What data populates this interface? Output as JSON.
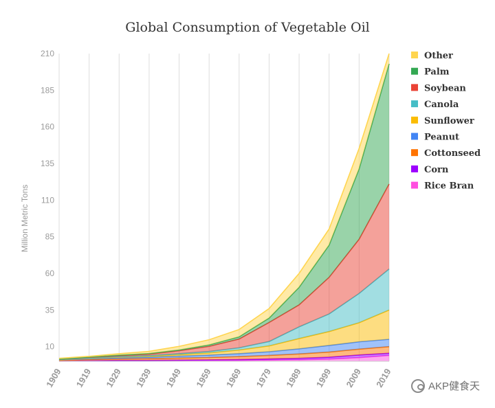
{
  "chart_data": {
    "type": "area",
    "stacked": true,
    "title": "Global Consumption of Vegetable Oil",
    "xlabel": "",
    "ylabel": "Million Metric Tons",
    "x": [
      "1909",
      "1919",
      "1929",
      "1939",
      "1949",
      "1959",
      "1969",
      "1979",
      "1989",
      "1999",
      "2009",
      "2019"
    ],
    "y_ticks": [
      10,
      35,
      60,
      85,
      110,
      135,
      160,
      185,
      210
    ],
    "ylim": [
      0,
      210
    ],
    "grid": "vertical",
    "legend_position": "right",
    "series": [
      {
        "name": "Rice Bran",
        "color": "#ff4fe0",
        "values": [
          0.1,
          0.2,
          0.3,
          0.3,
          0.4,
          0.5,
          0.6,
          0.8,
          1.0,
          1.5,
          2.5,
          4.0
        ]
      },
      {
        "name": "Corn",
        "color": "#9d00ff",
        "values": [
          0.1,
          0.2,
          0.3,
          0.3,
          0.4,
          0.5,
          0.6,
          0.8,
          1.0,
          1.3,
          1.8,
          1.5
        ]
      },
      {
        "name": "Cottonseed",
        "color": "#ff7300",
        "values": [
          0.5,
          0.8,
          1.0,
          1.2,
          1.4,
          1.6,
          2.0,
          2.4,
          3.0,
          3.5,
          4.0,
          4.5
        ]
      },
      {
        "name": "Peanut",
        "color": "#4285f4",
        "values": [
          0.3,
          0.6,
          0.8,
          1.0,
          1.3,
          1.6,
          2.0,
          2.5,
          3.5,
          4.5,
          5.0,
          5.0
        ]
      },
      {
        "name": "Sunflower",
        "color": "#fbbc04",
        "values": [
          0.1,
          0.3,
          0.5,
          0.7,
          1.0,
          1.5,
          2.5,
          4.0,
          7.0,
          9.5,
          13.0,
          20.0
        ]
      },
      {
        "name": "Canola",
        "color": "#46bdc6",
        "values": [
          0.1,
          0.2,
          0.3,
          0.4,
          0.7,
          1.0,
          1.5,
          3.0,
          8.0,
          12.0,
          20.0,
          28.0
        ]
      },
      {
        "name": "Soybean",
        "color": "#ea4335",
        "values": [
          0.2,
          0.4,
          0.7,
          1.0,
          2.0,
          3.5,
          6.0,
          13.0,
          15.0,
          25.0,
          37.0,
          58.0
        ]
      },
      {
        "name": "Palm",
        "color": "#34a853",
        "values": [
          0.1,
          0.2,
          0.3,
          0.4,
          0.5,
          1.0,
          1.5,
          3.0,
          12.0,
          22.0,
          48.0,
          82.0
        ]
      },
      {
        "name": "Other",
        "color": "#ffd54f",
        "values": [
          0.5,
          0.5,
          1.0,
          1.5,
          2.5,
          3.5,
          5.0,
          6.5,
          9.5,
          11.0,
          14.0,
          7.0
        ]
      }
    ]
  },
  "watermark": {
    "text": "AKP健食天",
    "icon": "wechat-icon"
  }
}
